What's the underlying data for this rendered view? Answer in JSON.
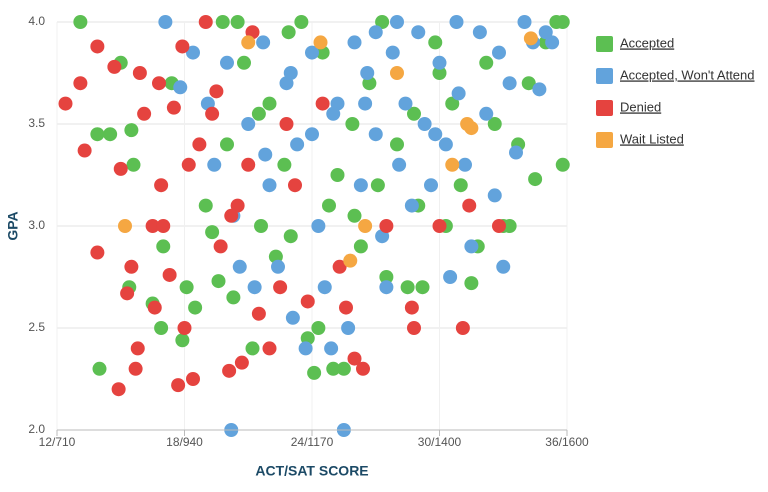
{
  "chart_data": {
    "type": "scatter",
    "x_label": "ACT/SAT SCORE",
    "y_label": "GPA",
    "xlim": [
      12,
      36
    ],
    "ylim": [
      2,
      4
    ],
    "xticks": [
      {
        "value": 12,
        "label": "12/710"
      },
      {
        "value": 18,
        "label": "18/940"
      },
      {
        "value": 24,
        "label": "24/1170"
      },
      {
        "value": 30,
        "label": "30/1400"
      },
      {
        "value": 36,
        "label": "36/1600"
      }
    ],
    "yticks": [
      {
        "value": 2,
        "label": "2.0"
      },
      2.5,
      {
        "value": 3,
        "label": "3.0"
      },
      3.5,
      {
        "value": 4,
        "label": "4.0"
      }
    ],
    "grid": true,
    "legend": "right",
    "series": [
      {
        "name": "Accepted",
        "color": "#5cbf52",
        "x": [
          13.1,
          14.0,
          13.9,
          14.5,
          15.0,
          15.5,
          15.4,
          15.6,
          16.5,
          16.9,
          17.0,
          17.4,
          17.9,
          18.1,
          18.5,
          19.0,
          19.3,
          19.6,
          20.0,
          20.3,
          20.8,
          21.2,
          21.6,
          22.0,
          22.3,
          22.7,
          23.0,
          23.5,
          23.8,
          24.1,
          24.3,
          24.8,
          25.0,
          25.5,
          25.9,
          26.3,
          26.7,
          27.1,
          27.5,
          28.0,
          28.5,
          29.0,
          29.2,
          29.8,
          30.3,
          30.6,
          31.0,
          31.5,
          31.8,
          32.2,
          32.6,
          33.0,
          33.3,
          33.7,
          34.2,
          34.5,
          35.0,
          35.8,
          35.8,
          35.5,
          20.5,
          19.8,
          22.9,
          24.5,
          27.3,
          30.0,
          28.8,
          25.2,
          21.5,
          26.0
        ],
        "values": [
          4.0,
          2.3,
          3.45,
          3.45,
          3.8,
          3.47,
          2.7,
          3.3,
          2.62,
          2.5,
          2.9,
          3.7,
          2.44,
          2.7,
          2.6,
          3.1,
          2.97,
          2.73,
          3.4,
          2.65,
          3.8,
          2.4,
          3.0,
          3.6,
          2.85,
          3.3,
          2.95,
          4.0,
          2.45,
          2.28,
          2.5,
          3.1,
          2.3,
          2.3,
          3.5,
          2.9,
          3.7,
          3.2,
          2.75,
          3.4,
          2.7,
          3.1,
          2.7,
          3.9,
          3.0,
          3.6,
          3.2,
          2.72,
          2.9,
          3.8,
          3.5,
          3.0,
          3.0,
          3.4,
          3.7,
          3.23,
          3.9,
          3.3,
          4.0,
          4.0,
          4.0,
          4.0,
          3.95,
          3.85,
          4.0,
          3.75,
          3.55,
          3.25,
          3.55,
          3.05
        ]
      },
      {
        "name": "Accepted, Won't Attend",
        "color": "#62a3dc",
        "x": [
          17.1,
          17.8,
          18.4,
          19.1,
          19.4,
          20.0,
          20.3,
          20.6,
          20.2,
          21.0,
          21.3,
          21.7,
          22.0,
          22.4,
          22.8,
          23.1,
          23.3,
          23.7,
          24.0,
          24.3,
          24.6,
          24.9,
          25.2,
          25.5,
          25.7,
          26.0,
          26.3,
          26.6,
          27.0,
          27.3,
          27.5,
          27.8,
          28.1,
          28.4,
          28.7,
          29.0,
          29.3,
          29.6,
          30.0,
          30.3,
          30.5,
          30.9,
          31.2,
          31.5,
          31.9,
          32.2,
          32.6,
          33.0,
          33.3,
          33.6,
          34.0,
          34.4,
          34.7,
          35.0,
          35.3,
          21.8,
          23.0,
          25.0,
          27.0,
          29.8,
          32.8,
          26.5,
          28.0,
          30.8,
          24.0
        ],
        "values": [
          4.0,
          3.68,
          3.85,
          3.6,
          3.3,
          3.8,
          3.05,
          2.8,
          2.0,
          3.5,
          2.7,
          3.9,
          3.2,
          2.8,
          3.7,
          2.55,
          3.4,
          2.4,
          3.85,
          3.0,
          2.7,
          2.4,
          3.6,
          2.0,
          2.5,
          3.9,
          3.2,
          3.75,
          3.45,
          2.95,
          2.7,
          3.85,
          3.3,
          3.6,
          3.1,
          3.95,
          3.5,
          3.2,
          3.8,
          3.4,
          2.75,
          3.65,
          3.3,
          2.9,
          3.95,
          3.55,
          3.15,
          2.8,
          3.7,
          3.36,
          4.0,
          3.9,
          3.67,
          3.95,
          3.9,
          3.35,
          3.75,
          3.55,
          3.95,
          3.45,
          3.85,
          3.6,
          4.0,
          4.0,
          3.45
        ]
      },
      {
        "name": "Denied",
        "color": "#e5433f",
        "x": [
          12.4,
          13.1,
          13.9,
          13.3,
          13.9,
          14.7,
          15.0,
          15.3,
          15.5,
          15.7,
          15.8,
          14.9,
          16.1,
          16.5,
          16.6,
          16.9,
          17.0,
          17.3,
          17.5,
          17.7,
          17.9,
          18.2,
          18.4,
          18.0,
          19.0,
          19.5,
          19.7,
          20.1,
          20.5,
          20.7,
          21.2,
          21.5,
          22.0,
          22.5,
          23.2,
          23.8,
          25.3,
          25.6,
          26.0,
          26.4,
          27.5,
          28.7,
          28.8,
          30.0,
          31.1,
          31.4,
          32.8,
          16.8,
          18.7,
          19.3,
          20.2,
          21.0,
          22.8,
          24.5,
          15.9
        ],
        "values": [
          3.6,
          3.7,
          3.88,
          3.37,
          2.87,
          3.78,
          3.28,
          2.67,
          2.8,
          2.3,
          2.4,
          2.2,
          3.55,
          3.0,
          2.6,
          3.2,
          3.0,
          2.76,
          3.58,
          2.22,
          3.88,
          3.3,
          2.25,
          2.5,
          4.0,
          3.66,
          2.9,
          2.29,
          3.1,
          2.33,
          3.95,
          2.57,
          2.4,
          2.7,
          3.2,
          2.63,
          2.8,
          2.6,
          2.35,
          2.3,
          3.0,
          2.6,
          2.5,
          3.0,
          2.5,
          3.1,
          3.0,
          3.7,
          3.4,
          3.55,
          3.05,
          3.3,
          3.5,
          3.6,
          3.75
        ]
      },
      {
        "name": "Wait Listed",
        "color": "#f5a742",
        "x": [
          15.2,
          21.0,
          25.8,
          26.5,
          31.3,
          31.5,
          34.3,
          24.4,
          30.6,
          28.0
        ],
        "values": [
          3.0,
          3.9,
          2.83,
          3.0,
          3.5,
          3.48,
          3.92,
          3.9,
          3.3,
          3.75
        ]
      }
    ]
  }
}
